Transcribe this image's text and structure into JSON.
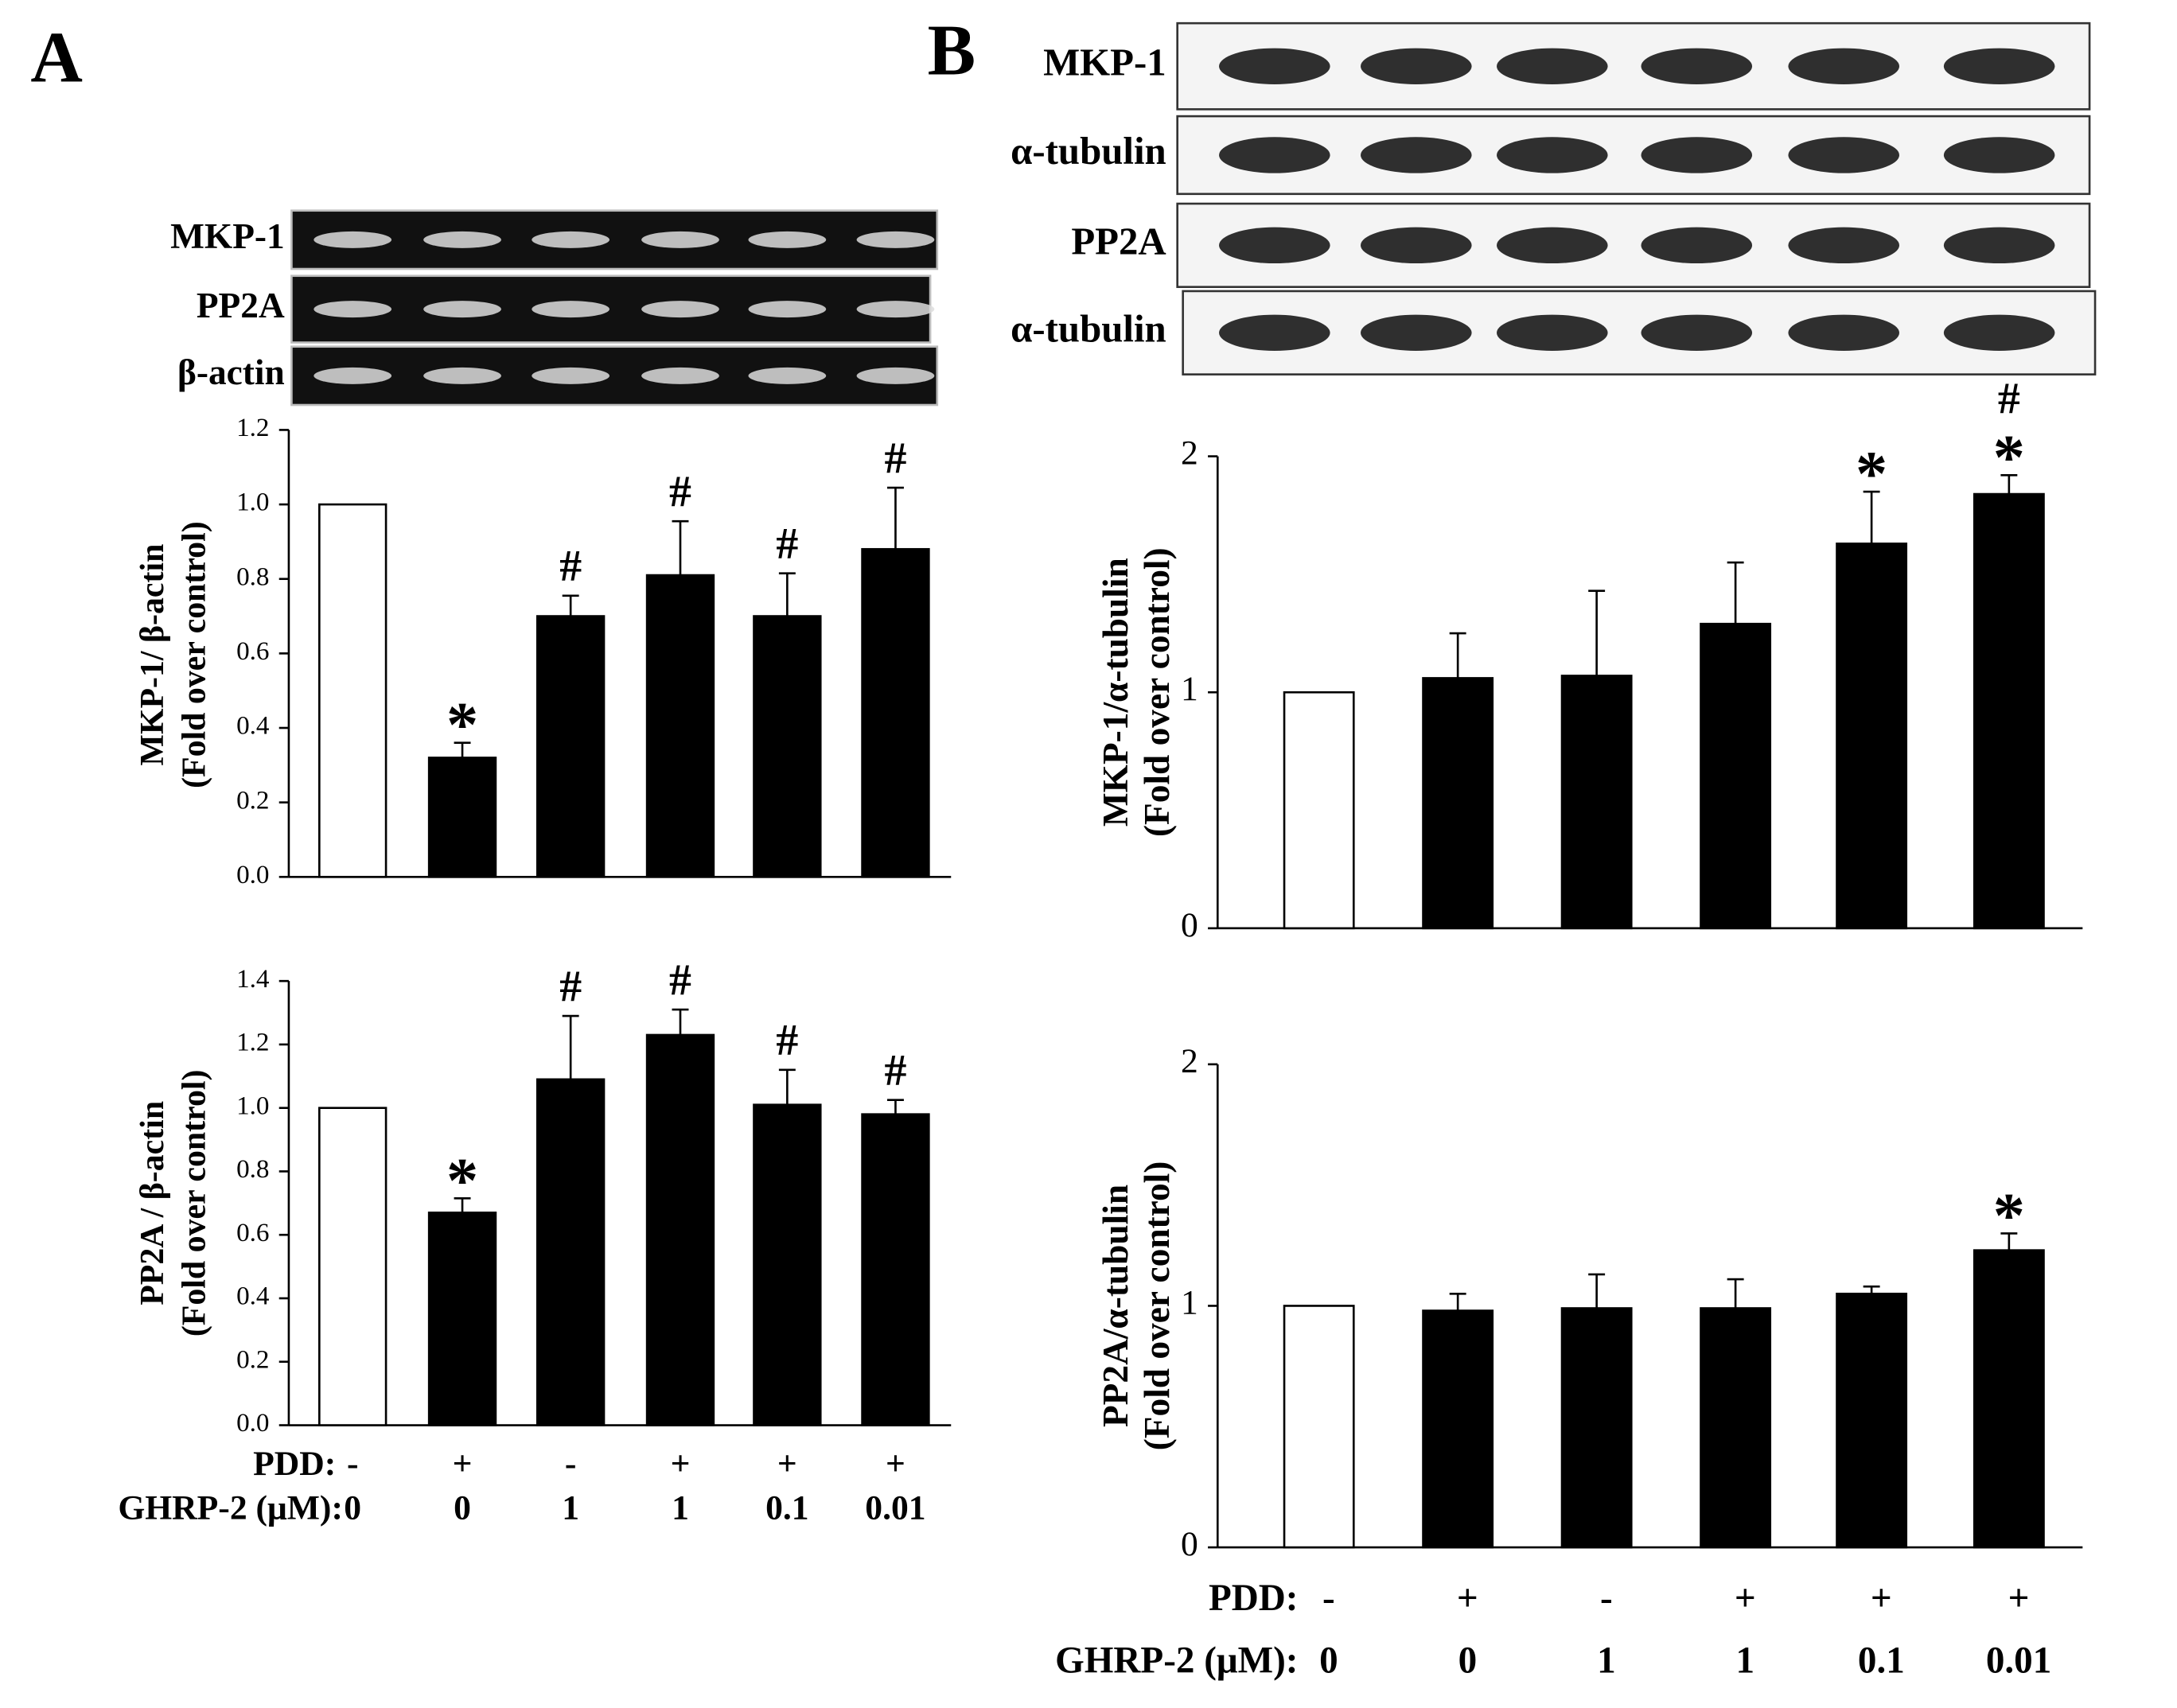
{
  "panels": [
    {
      "label": "A",
      "blots": [
        "MKP-1",
        "PP2A",
        "β-actin"
      ],
      "pdd": {
        "label": "PDD:",
        "values": [
          "-",
          "+",
          "-",
          "+",
          "+",
          "+"
        ]
      },
      "ghrp": {
        "label": "GHRP-2 (μM):",
        "values": [
          "0",
          "0",
          "1",
          "1",
          "0.1",
          "0.01"
        ]
      }
    },
    {
      "label": "B",
      "blots": [
        "MKP-1",
        "α-tubulin",
        "PP2A",
        "α-tubulin"
      ],
      "pdd": {
        "label": "PDD:",
        "values": [
          "-",
          "+",
          "-",
          "+",
          "+",
          "+"
        ]
      },
      "ghrp": {
        "label": "GHRP-2 (μM):",
        "values": [
          "0",
          "0",
          "1",
          "1",
          "0.1",
          "0.01"
        ]
      }
    }
  ],
  "chart_data": [
    {
      "type": "bar",
      "y_label": [
        "MKP-1/ β-actin",
        "(Fold over control)"
      ],
      "values": [
        1.0,
        0.32,
        0.7,
        0.81,
        0.7,
        0.88
      ],
      "errors": [
        0,
        0.04,
        0.055,
        0.145,
        0.115,
        0.165
      ],
      "annotations": [
        null,
        [
          "*"
        ],
        [
          "#"
        ],
        [
          "#"
        ],
        [
          "#"
        ],
        [
          "#"
        ]
      ],
      "colors": [
        "#ffffff",
        "#000000",
        "#000000",
        "#000000",
        "#000000",
        "#000000"
      ],
      "ylim": [
        0,
        1.2
      ],
      "yticks": [
        {
          "value": 0,
          "label": "0.0"
        },
        {
          "value": 0.2,
          "label": "0.2"
        },
        {
          "value": 0.4,
          "label": "0.4"
        },
        {
          "value": 0.6,
          "label": "0.6"
        },
        {
          "value": 0.8,
          "label": "0.8"
        },
        {
          "value": 1,
          "label": "1.0"
        },
        {
          "value": 1.2,
          "label": "1.2"
        }
      ]
    },
    {
      "type": "bar",
      "y_label": [
        "PP2A / β-actin",
        "(Fold over control)"
      ],
      "values": [
        1.0,
        0.67,
        1.09,
        1.23,
        1.01,
        0.98
      ],
      "errors": [
        0,
        0.045,
        0.2,
        0.08,
        0.11,
        0.045
      ],
      "annotations": [
        null,
        [
          "*"
        ],
        [
          "#"
        ],
        [
          "#"
        ],
        [
          "#"
        ],
        [
          "#"
        ]
      ],
      "colors": [
        "#ffffff",
        "#000000",
        "#000000",
        "#000000",
        "#000000",
        "#000000"
      ],
      "ylim": [
        0,
        1.4
      ],
      "yticks": [
        {
          "value": 0,
          "label": "0.0"
        },
        {
          "value": 0.2,
          "label": "0.2"
        },
        {
          "value": 0.4,
          "label": "0.4"
        },
        {
          "value": 0.6,
          "label": "0.6"
        },
        {
          "value": 0.8,
          "label": "0.8"
        },
        {
          "value": 1,
          "label": "1.0"
        },
        {
          "value": 1.2,
          "label": "1.2"
        },
        {
          "value": 1.4,
          "label": "1.4"
        }
      ]
    },
    {
      "type": "bar",
      "y_label": [
        "MKP-1/α-tubulin",
        "(Fold over control)"
      ],
      "values": [
        1.0,
        1.06,
        1.07,
        1.29,
        1.63,
        1.84
      ],
      "errors": [
        0,
        0.19,
        0.36,
        0.26,
        0.22,
        0.08
      ],
      "annotations": [
        null,
        null,
        null,
        null,
        [
          "*"
        ],
        [
          "#",
          "*"
        ]
      ],
      "colors": [
        "#ffffff",
        "#000000",
        "#000000",
        "#000000",
        "#000000",
        "#000000"
      ],
      "ylim": [
        0,
        2
      ],
      "yticks": [
        0,
        1,
        2
      ]
    },
    {
      "type": "bar",
      "y_label": [
        "PP2A/α-tubulin",
        "(Fold over control)"
      ],
      "values": [
        1.0,
        0.98,
        0.99,
        0.99,
        1.05,
        1.23
      ],
      "errors": [
        0,
        0.07,
        0.14,
        0.12,
        0.03,
        0.07
      ],
      "annotations": [
        null,
        null,
        null,
        null,
        null,
        [
          "*"
        ]
      ],
      "colors": [
        "#ffffff",
        "#000000",
        "#000000",
        "#000000",
        "#000000",
        "#000000"
      ],
      "ylim": [
        0,
        2
      ],
      "yticks": [
        0,
        1,
        2
      ]
    }
  ]
}
